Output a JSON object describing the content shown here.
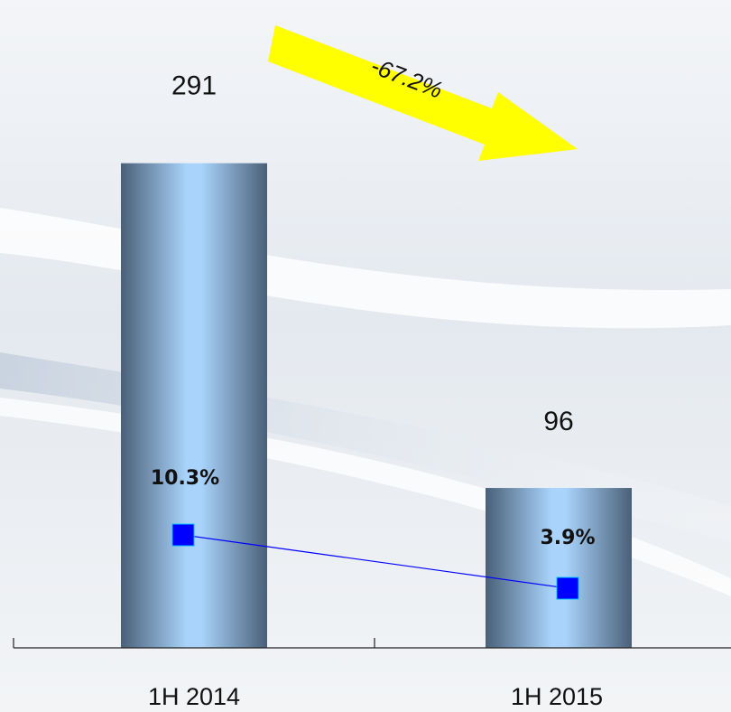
{
  "chart_data": {
    "type": "bar",
    "annotation": "-67.2%",
    "categories": [
      "1H 2014",
      "1H 2015"
    ],
    "series": [
      {
        "type": "bar",
        "color": "#a9d3fb",
        "values": [
          291,
          96
        ]
      },
      {
        "type": "line",
        "axis": "y2",
        "color": "#0000ff",
        "values": [
          10.3,
          3.9
        ],
        "value_labels": [
          "10.3%",
          "3.9%"
        ]
      }
    ],
    "ylim": [
      0,
      389
    ],
    "y2lim": [
      -3.25,
      74.5
    ]
  }
}
